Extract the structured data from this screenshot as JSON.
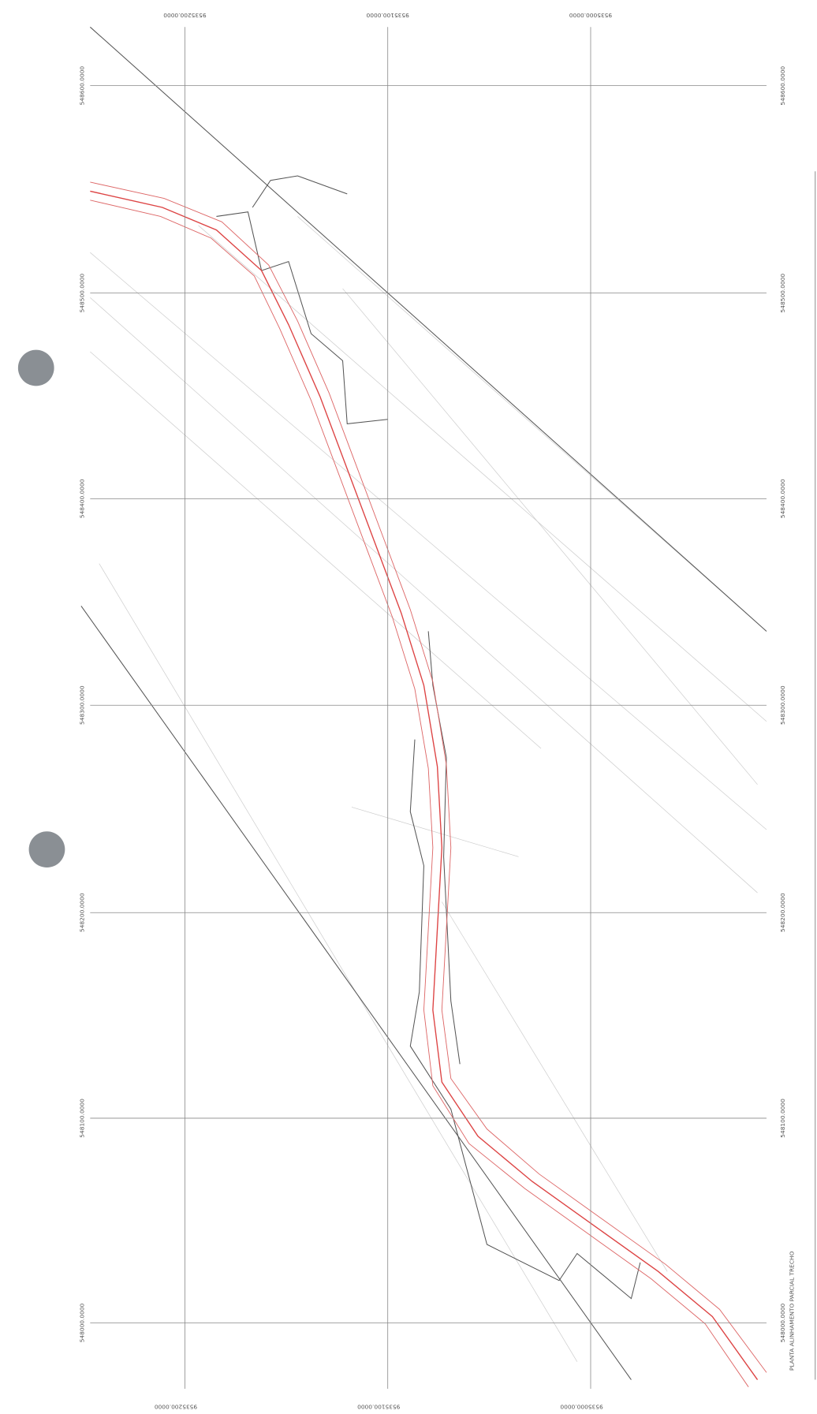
{
  "grid": {
    "northing_left": [
      "548600.0000",
      "548500.0000",
      "548400.0000",
      "548300.0000",
      "548200.0000",
      "548100.0000",
      "548000.0000"
    ],
    "northing_right": [
      "548600.0000",
      "548500.0000",
      "548400.0000",
      "548300.0000",
      "548200.0000",
      "548100.0000",
      "548000.0000"
    ],
    "easting_top": [
      "9535200.0000",
      "9535100.0000",
      "9535000.0000"
    ],
    "easting_bottom": [
      "9535200.0000",
      "9535100.0000",
      "9535000.0000"
    ]
  },
  "title_block": {
    "text": "PLANTA ALINHAMENTO PARCIAL TRECHO"
  }
}
